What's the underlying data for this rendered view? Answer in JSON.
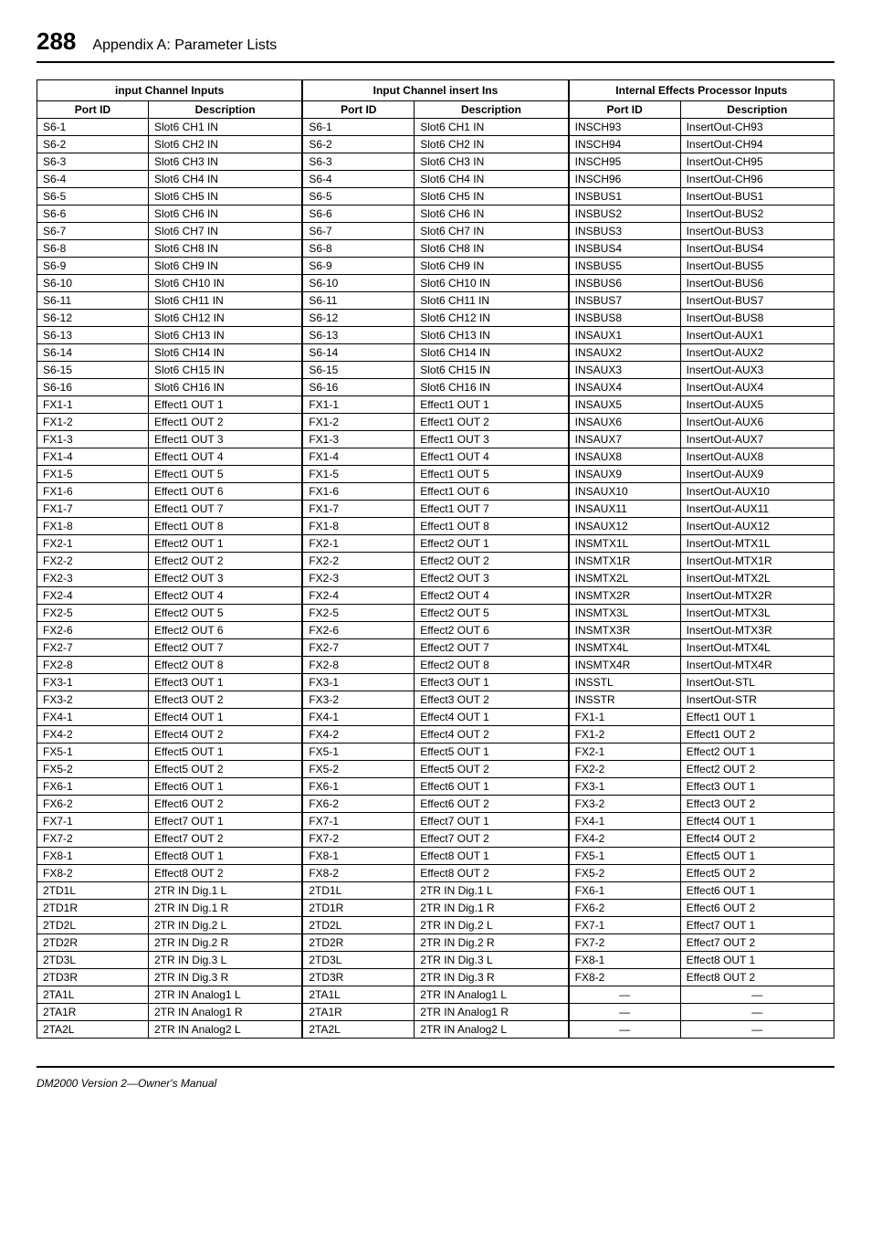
{
  "header": {
    "page_number": "288",
    "title": "Appendix A: Parameter Lists"
  },
  "footer": "DM2000 Version 2—Owner's Manual",
  "sections": [
    {
      "title": "input Channel Inputs",
      "col_port": "Port ID",
      "col_desc": "Description",
      "rows": [
        [
          "S6-1",
          "Slot6 CH1 IN"
        ],
        [
          "S6-2",
          "Slot6 CH2 IN"
        ],
        [
          "S6-3",
          "Slot6 CH3 IN"
        ],
        [
          "S6-4",
          "Slot6 CH4 IN"
        ],
        [
          "S6-5",
          "Slot6 CH5 IN"
        ],
        [
          "S6-6",
          "Slot6 CH6 IN"
        ],
        [
          "S6-7",
          "Slot6 CH7 IN"
        ],
        [
          "S6-8",
          "Slot6 CH8 IN"
        ],
        [
          "S6-9",
          "Slot6 CH9 IN"
        ],
        [
          "S6-10",
          "Slot6 CH10 IN"
        ],
        [
          "S6-11",
          "Slot6 CH11 IN"
        ],
        [
          "S6-12",
          "Slot6 CH12 IN"
        ],
        [
          "S6-13",
          "Slot6 CH13 IN"
        ],
        [
          "S6-14",
          "Slot6 CH14 IN"
        ],
        [
          "S6-15",
          "Slot6 CH15 IN"
        ],
        [
          "S6-16",
          "Slot6 CH16 IN"
        ],
        [
          "FX1-1",
          "Effect1 OUT 1"
        ],
        [
          "FX1-2",
          "Effect1 OUT 2"
        ],
        [
          "FX1-3",
          "Effect1 OUT 3"
        ],
        [
          "FX1-4",
          "Effect1 OUT 4"
        ],
        [
          "FX1-5",
          "Effect1 OUT 5"
        ],
        [
          "FX1-6",
          "Effect1 OUT 6"
        ],
        [
          "FX1-7",
          "Effect1 OUT 7"
        ],
        [
          "FX1-8",
          "Effect1 OUT 8"
        ],
        [
          "FX2-1",
          "Effect2 OUT 1"
        ],
        [
          "FX2-2",
          "Effect2 OUT 2"
        ],
        [
          "FX2-3",
          "Effect2 OUT 3"
        ],
        [
          "FX2-4",
          "Effect2 OUT 4"
        ],
        [
          "FX2-5",
          "Effect2 OUT 5"
        ],
        [
          "FX2-6",
          "Effect2 OUT 6"
        ],
        [
          "FX2-7",
          "Effect2 OUT 7"
        ],
        [
          "FX2-8",
          "Effect2 OUT 8"
        ],
        [
          "FX3-1",
          "Effect3 OUT 1"
        ],
        [
          "FX3-2",
          "Effect3 OUT 2"
        ],
        [
          "FX4-1",
          "Effect4 OUT 1"
        ],
        [
          "FX4-2",
          "Effect4 OUT 2"
        ],
        [
          "FX5-1",
          "Effect5 OUT 1"
        ],
        [
          "FX5-2",
          "Effect5 OUT 2"
        ],
        [
          "FX6-1",
          "Effect6 OUT 1"
        ],
        [
          "FX6-2",
          "Effect6 OUT 2"
        ],
        [
          "FX7-1",
          "Effect7 OUT 1"
        ],
        [
          "FX7-2",
          "Effect7 OUT 2"
        ],
        [
          "FX8-1",
          "Effect8 OUT 1"
        ],
        [
          "FX8-2",
          "Effect8 OUT 2"
        ],
        [
          "2TD1L",
          "2TR IN Dig.1 L"
        ],
        [
          "2TD1R",
          "2TR IN Dig.1 R"
        ],
        [
          "2TD2L",
          "2TR IN Dig.2 L"
        ],
        [
          "2TD2R",
          "2TR IN Dig.2 R"
        ],
        [
          "2TD3L",
          "2TR IN Dig.3 L"
        ],
        [
          "2TD3R",
          "2TR IN Dig.3 R"
        ],
        [
          "2TA1L",
          "2TR IN Analog1 L"
        ],
        [
          "2TA1R",
          "2TR IN Analog1 R"
        ],
        [
          "2TA2L",
          "2TR IN Analog2 L"
        ]
      ]
    },
    {
      "title": "Input Channel insert Ins",
      "col_port": "Port ID",
      "col_desc": "Description",
      "rows": [
        [
          "S6-1",
          "Slot6 CH1 IN"
        ],
        [
          "S6-2",
          "Slot6 CH2 IN"
        ],
        [
          "S6-3",
          "Slot6 CH3 IN"
        ],
        [
          "S6-4",
          "Slot6 CH4 IN"
        ],
        [
          "S6-5",
          "Slot6 CH5 IN"
        ],
        [
          "S6-6",
          "Slot6 CH6 IN"
        ],
        [
          "S6-7",
          "Slot6 CH7 IN"
        ],
        [
          "S6-8",
          "Slot6 CH8 IN"
        ],
        [
          "S6-9",
          "Slot6 CH9 IN"
        ],
        [
          "S6-10",
          "Slot6 CH10 IN"
        ],
        [
          "S6-11",
          "Slot6 CH11 IN"
        ],
        [
          "S6-12",
          "Slot6 CH12 IN"
        ],
        [
          "S6-13",
          "Slot6 CH13 IN"
        ],
        [
          "S6-14",
          "Slot6 CH14 IN"
        ],
        [
          "S6-15",
          "Slot6 CH15 IN"
        ],
        [
          "S6-16",
          "Slot6 CH16 IN"
        ],
        [
          "FX1-1",
          "Effect1 OUT 1"
        ],
        [
          "FX1-2",
          "Effect1 OUT 2"
        ],
        [
          "FX1-3",
          "Effect1 OUT 3"
        ],
        [
          "FX1-4",
          "Effect1 OUT 4"
        ],
        [
          "FX1-5",
          "Effect1 OUT 5"
        ],
        [
          "FX1-6",
          "Effect1 OUT 6"
        ],
        [
          "FX1-7",
          "Effect1 OUT 7"
        ],
        [
          "FX1-8",
          "Effect1 OUT 8"
        ],
        [
          "FX2-1",
          "Effect2 OUT 1"
        ],
        [
          "FX2-2",
          "Effect2 OUT 2"
        ],
        [
          "FX2-3",
          "Effect2 OUT 3"
        ],
        [
          "FX2-4",
          "Effect2 OUT 4"
        ],
        [
          "FX2-5",
          "Effect2 OUT 5"
        ],
        [
          "FX2-6",
          "Effect2 OUT 6"
        ],
        [
          "FX2-7",
          "Effect2 OUT 7"
        ],
        [
          "FX2-8",
          "Effect2 OUT 8"
        ],
        [
          "FX3-1",
          "Effect3 OUT 1"
        ],
        [
          "FX3-2",
          "Effect3 OUT 2"
        ],
        [
          "FX4-1",
          "Effect4 OUT 1"
        ],
        [
          "FX4-2",
          "Effect4 OUT 2"
        ],
        [
          "FX5-1",
          "Effect5 OUT 1"
        ],
        [
          "FX5-2",
          "Effect5 OUT 2"
        ],
        [
          "FX6-1",
          "Effect6 OUT 1"
        ],
        [
          "FX6-2",
          "Effect6 OUT 2"
        ],
        [
          "FX7-1",
          "Effect7 OUT 1"
        ],
        [
          "FX7-2",
          "Effect7 OUT 2"
        ],
        [
          "FX8-1",
          "Effect8 OUT 1"
        ],
        [
          "FX8-2",
          "Effect8 OUT 2"
        ],
        [
          "2TD1L",
          "2TR IN Dig.1 L"
        ],
        [
          "2TD1R",
          "2TR IN Dig.1 R"
        ],
        [
          "2TD2L",
          "2TR IN Dig.2 L"
        ],
        [
          "2TD2R",
          "2TR IN Dig.2 R"
        ],
        [
          "2TD3L",
          "2TR IN Dig.3 L"
        ],
        [
          "2TD3R",
          "2TR IN Dig.3 R"
        ],
        [
          "2TA1L",
          "2TR IN Analog1 L"
        ],
        [
          "2TA1R",
          "2TR IN Analog1 R"
        ],
        [
          "2TA2L",
          "2TR IN Analog2 L"
        ]
      ]
    },
    {
      "title": "Internal Effects Processor Inputs",
      "col_port": "Port ID",
      "col_desc": "Description",
      "rows": [
        [
          "INSCH93",
          "InsertOut-CH93"
        ],
        [
          "INSCH94",
          "InsertOut-CH94"
        ],
        [
          "INSCH95",
          "InsertOut-CH95"
        ],
        [
          "INSCH96",
          "InsertOut-CH96"
        ],
        [
          "INSBUS1",
          "InsertOut-BUS1"
        ],
        [
          "INSBUS2",
          "InsertOut-BUS2"
        ],
        [
          "INSBUS3",
          "InsertOut-BUS3"
        ],
        [
          "INSBUS4",
          "InsertOut-BUS4"
        ],
        [
          "INSBUS5",
          "InsertOut-BUS5"
        ],
        [
          "INSBUS6",
          "InsertOut-BUS6"
        ],
        [
          "INSBUS7",
          "InsertOut-BUS7"
        ],
        [
          "INSBUS8",
          "InsertOut-BUS8"
        ],
        [
          "INSAUX1",
          "InsertOut-AUX1"
        ],
        [
          "INSAUX2",
          "InsertOut-AUX2"
        ],
        [
          "INSAUX3",
          "InsertOut-AUX3"
        ],
        [
          "INSAUX4",
          "InsertOut-AUX4"
        ],
        [
          "INSAUX5",
          "InsertOut-AUX5"
        ],
        [
          "INSAUX6",
          "InsertOut-AUX6"
        ],
        [
          "INSAUX7",
          "InsertOut-AUX7"
        ],
        [
          "INSAUX8",
          "InsertOut-AUX8"
        ],
        [
          "INSAUX9",
          "InsertOut-AUX9"
        ],
        [
          "INSAUX10",
          "InsertOut-AUX10"
        ],
        [
          "INSAUX11",
          "InsertOut-AUX11"
        ],
        [
          "INSAUX12",
          "InsertOut-AUX12"
        ],
        [
          "INSMTX1L",
          "InsertOut-MTX1L"
        ],
        [
          "INSMTX1R",
          "InsertOut-MTX1R"
        ],
        [
          "INSMTX2L",
          "InsertOut-MTX2L"
        ],
        [
          "INSMTX2R",
          "InsertOut-MTX2R"
        ],
        [
          "INSMTX3L",
          "InsertOut-MTX3L"
        ],
        [
          "INSMTX3R",
          "InsertOut-MTX3R"
        ],
        [
          "INSMTX4L",
          "InsertOut-MTX4L"
        ],
        [
          "INSMTX4R",
          "InsertOut-MTX4R"
        ],
        [
          "INSSTL",
          "InsertOut-STL"
        ],
        [
          "INSSTR",
          "InsertOut-STR"
        ],
        [
          "FX1-1",
          "Effect1 OUT 1"
        ],
        [
          "FX1-2",
          "Effect1 OUT 2"
        ],
        [
          "FX2-1",
          "Effect2 OUT 1"
        ],
        [
          "FX2-2",
          "Effect2 OUT 2"
        ],
        [
          "FX3-1",
          "Effect3 OUT 1"
        ],
        [
          "FX3-2",
          "Effect3 OUT 2"
        ],
        [
          "FX4-1",
          "Effect4 OUT 1"
        ],
        [
          "FX4-2",
          "Effect4 OUT 2"
        ],
        [
          "FX5-1",
          "Effect5 OUT 1"
        ],
        [
          "FX5-2",
          "Effect5 OUT 2"
        ],
        [
          "FX6-1",
          "Effect6 OUT 1"
        ],
        [
          "FX6-2",
          "Effect6 OUT 2"
        ],
        [
          "FX7-1",
          "Effect7 OUT 1"
        ],
        [
          "FX7-2",
          "Effect7 OUT 2"
        ],
        [
          "FX8-1",
          "Effect8 OUT 1"
        ],
        [
          "FX8-2",
          "Effect8 OUT 2"
        ],
        [
          "—",
          "—"
        ],
        [
          "—",
          "—"
        ],
        [
          "—",
          "—"
        ]
      ]
    }
  ]
}
